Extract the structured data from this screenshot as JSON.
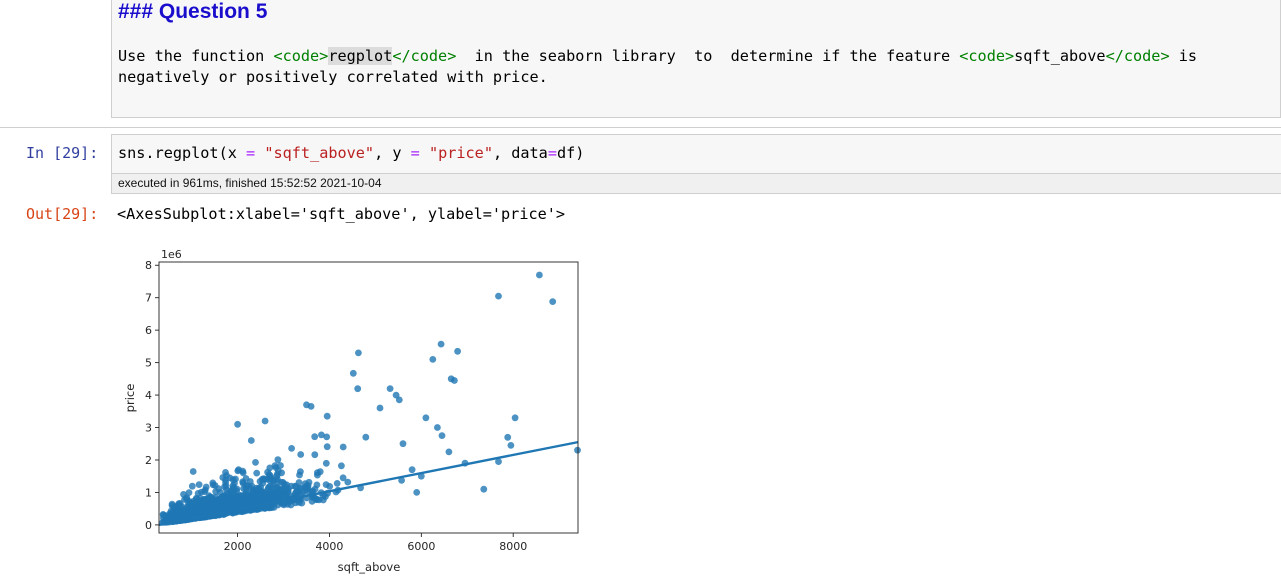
{
  "markdown": {
    "heading": "### Question 5",
    "line1_parts": [
      "Use the function ",
      "<code>",
      "regplot",
      "</code>",
      "  in the seaborn library  to  determine if the feature ",
      "<code>",
      "sqft_above",
      "</code>",
      " is"
    ],
    "line2": "negatively or positively correlated with price."
  },
  "code_cell": {
    "prompt": "In [29]:",
    "code_parts": [
      "sns.regplot(x ",
      "=",
      " ",
      "\"sqft_above\"",
      ", y ",
      "=",
      " ",
      "\"price\"",
      ", data",
      "=",
      "df)"
    ],
    "execution_info": "executed in 961ms, finished 15:52:52 2021-10-04"
  },
  "output": {
    "prompt": "Out[29]:",
    "text": "<AxesSubplot:xlabel='sqft_above', ylabel='price'>"
  },
  "colors": {
    "points": "#1f77b4",
    "heading": "#1a0dcc",
    "in_prompt": "#303f9f",
    "out_prompt": "#d84315"
  },
  "chart_data": {
    "type": "scatter",
    "xlabel": "sqft_above",
    "ylabel": "price",
    "y_scale_label": "1e6",
    "xlim": [
      290,
      9410
    ],
    "ylim": [
      -0.25,
      8.1
    ],
    "x_ticks": [
      2000,
      4000,
      6000,
      8000
    ],
    "y_ticks": [
      0,
      1,
      2,
      3,
      4,
      5,
      6,
      7,
      8
    ],
    "grid": false,
    "regression_line": {
      "x": [
        290,
        9410
      ],
      "y": [
        0.0,
        2.55
      ]
    },
    "outliers": [
      {
        "x": 8570,
        "y": 7.7
      },
      {
        "x": 7680,
        "y": 7.05
      },
      {
        "x": 8860,
        "y": 6.88
      },
      {
        "x": 6430,
        "y": 5.57
      },
      {
        "x": 6790,
        "y": 5.35
      },
      {
        "x": 4630,
        "y": 5.3
      },
      {
        "x": 6250,
        "y": 5.1
      },
      {
        "x": 6650,
        "y": 4.5
      },
      {
        "x": 6720,
        "y": 4.45
      },
      {
        "x": 4520,
        "y": 4.67
      },
      {
        "x": 5320,
        "y": 4.2
      },
      {
        "x": 5450,
        "y": 4.0
      },
      {
        "x": 5520,
        "y": 3.85
      },
      {
        "x": 8040,
        "y": 3.3
      },
      {
        "x": 7880,
        "y": 2.7
      },
      {
        "x": 7950,
        "y": 2.45
      },
      {
        "x": 7680,
        "y": 1.95
      },
      {
        "x": 7360,
        "y": 1.1
      },
      {
        "x": 9400,
        "y": 2.3
      },
      {
        "x": 6450,
        "y": 2.75
      },
      {
        "x": 6600,
        "y": 2.25
      },
      {
        "x": 6350,
        "y": 3.0
      },
      {
        "x": 6100,
        "y": 3.3
      },
      {
        "x": 5100,
        "y": 3.6
      },
      {
        "x": 3600,
        "y": 3.65
      },
      {
        "x": 3500,
        "y": 3.7
      },
      {
        "x": 2600,
        "y": 3.2
      },
      {
        "x": 2000,
        "y": 3.1
      },
      {
        "x": 3950,
        "y": 3.35
      },
      {
        "x": 2300,
        "y": 2.6
      },
      {
        "x": 5900,
        "y": 1.0
      },
      {
        "x": 5800,
        "y": 1.7
      },
      {
        "x": 6950,
        "y": 1.9
      },
      {
        "x": 6000,
        "y": 1.5
      },
      {
        "x": 4300,
        "y": 2.4
      },
      {
        "x": 5600,
        "y": 2.5
      }
    ]
  }
}
